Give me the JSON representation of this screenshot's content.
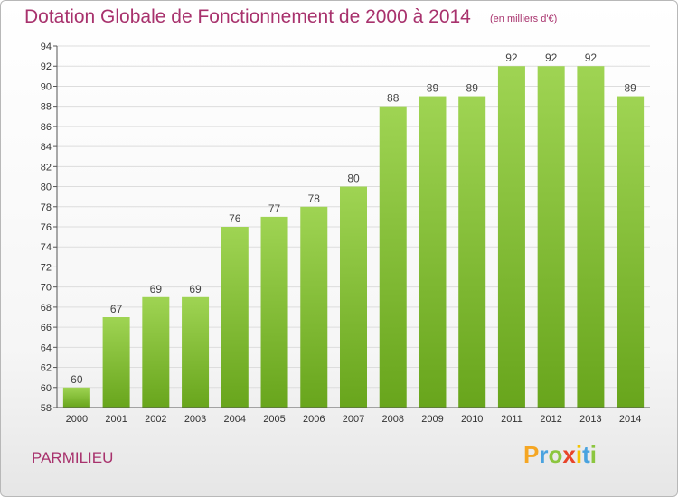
{
  "chart_data": {
    "type": "bar",
    "title": "Dotation Globale de Fonctionnement de 2000 à 2014",
    "subtitle": "(en milliers d'€)",
    "categories": [
      "2000",
      "2001",
      "2002",
      "2003",
      "2004",
      "2005",
      "2006",
      "2007",
      "2008",
      "2009",
      "2010",
      "2011",
      "2012",
      "2013",
      "2014"
    ],
    "values": [
      60,
      67,
      69,
      69,
      76,
      77,
      78,
      80,
      88,
      89,
      89,
      92,
      92,
      92,
      89
    ],
    "ylim": [
      58,
      94
    ],
    "yticks": [
      58,
      60,
      62,
      64,
      66,
      68,
      70,
      72,
      74,
      76,
      78,
      80,
      82,
      84,
      86,
      88,
      90,
      92,
      94
    ],
    "grid": true,
    "colors": {
      "bar_top": "#9fd453",
      "bar_bottom": "#68a51c",
      "title": "#a8326d",
      "grid": "#dddddd"
    }
  },
  "commune": "PARMILIEU",
  "logo": {
    "letters": [
      "P",
      "r",
      "o",
      "x",
      "i",
      "t",
      "i"
    ],
    "colors": [
      "#f5a623",
      "#4aa3df",
      "#8cc63f",
      "#e8442a",
      "#f5c400",
      "#4aa3df",
      "#8cc63f"
    ]
  }
}
